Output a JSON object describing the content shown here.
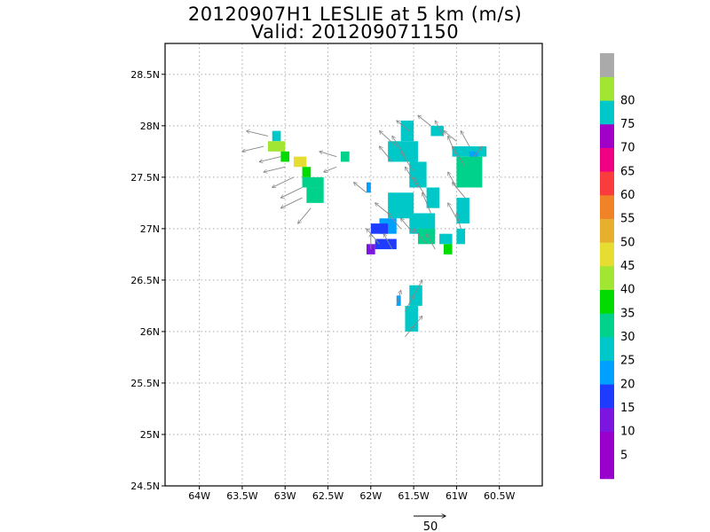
{
  "header": {
    "title": "20120907H1 LESLIE at 5 km (m/s)",
    "subtitle": "Valid: 201209071150"
  },
  "chart_data": {
    "type": "heatmap",
    "title": "20120907H1 LESLIE at 5 km (m/s)",
    "subtitle": "Valid: 201209071150",
    "xlim": [
      -64.4,
      -60.0
    ],
    "ylim": [
      24.5,
      28.8
    ],
    "x_ticks": [
      {
        "value": -64.0,
        "label": "64W"
      },
      {
        "value": -63.5,
        "label": "63.5W"
      },
      {
        "value": -63.0,
        "label": "63W"
      },
      {
        "value": -62.5,
        "label": "62.5W"
      },
      {
        "value": -62.0,
        "label": "62W"
      },
      {
        "value": -61.5,
        "label": "61.5W"
      },
      {
        "value": -61.0,
        "label": "61W"
      },
      {
        "value": -60.5,
        "label": "60.5W"
      }
    ],
    "y_ticks": [
      {
        "value": 24.5,
        "label": "24.5N"
      },
      {
        "value": 25.0,
        "label": "25N"
      },
      {
        "value": 25.5,
        "label": "25.5N"
      },
      {
        "value": 26.0,
        "label": "26N"
      },
      {
        "value": 26.5,
        "label": "26.5N"
      },
      {
        "value": 27.0,
        "label": "27N"
      },
      {
        "value": 27.5,
        "label": "27.5N"
      },
      {
        "value": 28.0,
        "label": "28N"
      },
      {
        "value": 28.5,
        "label": "28.5N"
      }
    ],
    "grid": true,
    "colorbar": {
      "levels": [
        {
          "label": "",
          "color": "#9900cc"
        },
        {
          "label": "5",
          "color": "#9900cc"
        },
        {
          "label": "10",
          "color": "#7a16e0"
        },
        {
          "label": "15",
          "color": "#1e3cff"
        },
        {
          "label": "20",
          "color": "#00a0ff"
        },
        {
          "label": "25",
          "color": "#00c8c8"
        },
        {
          "label": "30",
          "color": "#00d28c"
        },
        {
          "label": "35",
          "color": "#00dc00"
        },
        {
          "label": "40",
          "color": "#a0e632"
        },
        {
          "label": "45",
          "color": "#e6dc32"
        },
        {
          "label": "50",
          "color": "#e6af2d"
        },
        {
          "label": "55",
          "color": "#f08228"
        },
        {
          "label": "60",
          "color": "#fa3c3c"
        },
        {
          "label": "65",
          "color": "#f00082"
        },
        {
          "label": "70",
          "color": "#a000c8"
        },
        {
          "label": "75",
          "color": "#00c8c8"
        },
        {
          "label": "80",
          "color": "#a0e632"
        },
        {
          "label": "",
          "color": "#aaaaaa"
        }
      ]
    },
    "cells": [
      {
        "lon": -63.15,
        "lat": 27.85,
        "w": 0.1,
        "h": 0.1,
        "color": "#00c8c8"
      },
      {
        "lon": -63.2,
        "lat": 27.75,
        "w": 0.2,
        "h": 0.1,
        "color": "#a0e632"
      },
      {
        "lon": -63.05,
        "lat": 27.65,
        "w": 0.1,
        "h": 0.1,
        "color": "#00dc00"
      },
      {
        "lon": -62.9,
        "lat": 27.6,
        "w": 0.15,
        "h": 0.1,
        "color": "#e6dc32"
      },
      {
        "lon": -62.8,
        "lat": 27.5,
        "w": 0.1,
        "h": 0.1,
        "color": "#00dc00"
      },
      {
        "lon": -62.8,
        "lat": 27.4,
        "w": 0.25,
        "h": 0.1,
        "color": "#00d28c"
      },
      {
        "lon": -62.75,
        "lat": 27.25,
        "w": 0.2,
        "h": 0.15,
        "color": "#00d28c"
      },
      {
        "lon": -62.35,
        "lat": 27.65,
        "w": 0.1,
        "h": 0.1,
        "color": "#00d28c"
      },
      {
        "lon": -62.05,
        "lat": 27.35,
        "w": 0.05,
        "h": 0.1,
        "color": "#00a0ff"
      },
      {
        "lon": -61.65,
        "lat": 27.85,
        "w": 0.15,
        "h": 0.2,
        "color": "#00c8c8"
      },
      {
        "lon": -61.8,
        "lat": 27.65,
        "w": 0.35,
        "h": 0.2,
        "color": "#00c8c8"
      },
      {
        "lon": -61.55,
        "lat": 27.4,
        "w": 0.2,
        "h": 0.25,
        "color": "#00c8c8"
      },
      {
        "lon": -61.35,
        "lat": 27.2,
        "w": 0.15,
        "h": 0.2,
        "color": "#00c8c8"
      },
      {
        "lon": -61.3,
        "lat": 27.9,
        "w": 0.15,
        "h": 0.1,
        "color": "#00c8c8"
      },
      {
        "lon": -61.05,
        "lat": 27.7,
        "w": 0.4,
        "h": 0.1,
        "color": "#00c8c8"
      },
      {
        "lon": -60.85,
        "lat": 27.65,
        "w": 0.1,
        "h": 0.1,
        "color": "#00a0ff"
      },
      {
        "lon": -61.0,
        "lat": 27.4,
        "w": 0.3,
        "h": 0.3,
        "color": "#00d28c"
      },
      {
        "lon": -61.0,
        "lat": 27.05,
        "w": 0.15,
        "h": 0.25,
        "color": "#00c8c8"
      },
      {
        "lon": -61.0,
        "lat": 26.85,
        "w": 0.1,
        "h": 0.15,
        "color": "#00c8c8"
      },
      {
        "lon": -61.8,
        "lat": 27.1,
        "w": 0.3,
        "h": 0.25,
        "color": "#00c8c8"
      },
      {
        "lon": -61.9,
        "lat": 26.95,
        "w": 0.2,
        "h": 0.15,
        "color": "#00a0ff"
      },
      {
        "lon": -61.55,
        "lat": 26.95,
        "w": 0.3,
        "h": 0.2,
        "color": "#00c8c8"
      },
      {
        "lon": -61.45,
        "lat": 26.85,
        "w": 0.2,
        "h": 0.15,
        "color": "#00d28c"
      },
      {
        "lon": -61.2,
        "lat": 26.85,
        "w": 0.15,
        "h": 0.1,
        "color": "#00c8c8"
      },
      {
        "lon": -62.0,
        "lat": 26.95,
        "w": 0.2,
        "h": 0.1,
        "color": "#1e3cff"
      },
      {
        "lon": -61.95,
        "lat": 26.8,
        "w": 0.25,
        "h": 0.1,
        "color": "#1e3cff"
      },
      {
        "lon": -62.05,
        "lat": 26.75,
        "w": 0.1,
        "h": 0.1,
        "color": "#7a16e0"
      },
      {
        "lon": -61.15,
        "lat": 26.75,
        "w": 0.1,
        "h": 0.1,
        "color": "#00dc00"
      },
      {
        "lon": -61.55,
        "lat": 26.25,
        "w": 0.15,
        "h": 0.2,
        "color": "#00c8c8"
      },
      {
        "lon": -61.6,
        "lat": 26.0,
        "w": 0.15,
        "h": 0.25,
        "color": "#00c8c8"
      },
      {
        "lon": -61.7,
        "lat": 26.25,
        "w": 0.05,
        "h": 0.1,
        "color": "#00a0ff"
      }
    ],
    "vectors": [
      [
        -63.2,
        27.9,
        -0.25,
        0.05
      ],
      [
        -63.25,
        27.8,
        -0.25,
        -0.05
      ],
      [
        -63.05,
        27.7,
        -0.25,
        -0.05
      ],
      [
        -63.0,
        27.6,
        -0.25,
        -0.05
      ],
      [
        -62.9,
        27.5,
        -0.25,
        -0.1
      ],
      [
        -62.8,
        27.4,
        -0.25,
        -0.1
      ],
      [
        -62.8,
        27.3,
        -0.25,
        -0.1
      ],
      [
        -62.7,
        27.2,
        -0.15,
        -0.15
      ],
      [
        -62.4,
        27.7,
        -0.2,
        0.05
      ],
      [
        -62.4,
        27.6,
        -0.15,
        -0.05
      ],
      [
        -62.05,
        27.35,
        -0.15,
        0.1
      ],
      [
        -61.55,
        27.95,
        -0.15,
        0.1
      ],
      [
        -61.7,
        27.8,
        -0.2,
        0.15
      ],
      [
        -61.75,
        27.65,
        -0.15,
        0.15
      ],
      [
        -61.6,
        27.7,
        -0.15,
        0.2
      ],
      [
        -61.5,
        27.55,
        -0.15,
        0.2
      ],
      [
        -61.45,
        27.4,
        -0.15,
        0.2
      ],
      [
        -61.35,
        27.3,
        -0.15,
        0.2
      ],
      [
        -61.3,
        27.15,
        -0.1,
        0.2
      ],
      [
        -61.3,
        28.0,
        -0.15,
        0.1
      ],
      [
        -61.15,
        27.9,
        -0.1,
        0.15
      ],
      [
        -61.0,
        27.85,
        -0.15,
        0.1
      ],
      [
        -60.85,
        27.8,
        -0.1,
        0.15
      ],
      [
        -61.0,
        27.7,
        -0.1,
        0.2
      ],
      [
        -60.9,
        27.6,
        -0.15,
        0.2
      ],
      [
        -60.8,
        27.7,
        0.1,
        0.1
      ],
      [
        -61.0,
        27.4,
        -0.1,
        0.15
      ],
      [
        -60.9,
        27.3,
        -0.15,
        0.15
      ],
      [
        -61.0,
        27.1,
        -0.1,
        0.15
      ],
      [
        -60.95,
        27.0,
        -0.05,
        0.15
      ],
      [
        -61.8,
        27.15,
        -0.15,
        0.1
      ],
      [
        -61.65,
        27.0,
        -0.15,
        0.15
      ],
      [
        -61.5,
        26.95,
        -0.15,
        0.15
      ],
      [
        -61.35,
        26.85,
        -0.15,
        0.15
      ],
      [
        -61.25,
        26.8,
        -0.1,
        0.15
      ],
      [
        -61.9,
        26.85,
        -0.15,
        0.15
      ],
      [
        -62.0,
        26.8,
        0.0,
        0.15
      ],
      [
        -61.75,
        26.8,
        -0.1,
        0.15
      ],
      [
        -61.5,
        26.35,
        0.1,
        0.15
      ],
      [
        -61.6,
        26.2,
        0.1,
        0.15
      ],
      [
        -61.5,
        26.05,
        0.1,
        0.1
      ],
      [
        -61.6,
        25.95,
        0.1,
        0.1
      ],
      [
        -61.7,
        26.25,
        0.05,
        0.15
      ]
    ],
    "reference_vector": {
      "label": "50"
    }
  }
}
